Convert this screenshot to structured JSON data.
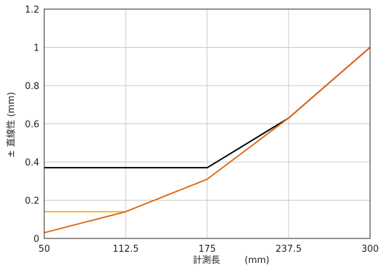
{
  "chart_data": {
    "type": "line",
    "xlabel_main": "計測長",
    "xlabel_unit": "(mm)",
    "ylabel": "± 直線性 (mm)",
    "xlim": [
      50,
      300
    ],
    "ylim": [
      0,
      1.2
    ],
    "x_ticks": [
      "50",
      "112.5",
      "175",
      "237.5",
      "300"
    ],
    "y_ticks": [
      "0",
      "0.2",
      "0.4",
      "0.6",
      "0.8",
      "1",
      "1.2"
    ],
    "grid": true,
    "series": [
      {
        "color": "#000000",
        "x": [
          50,
          175,
          237.5,
          300
        ],
        "y": [
          0.37,
          0.37,
          0.63,
          1.0
        ]
      },
      {
        "color": "#f5b82e",
        "x": [
          50,
          112.5
        ],
        "y": [
          0.14,
          0.14
        ]
      },
      {
        "color": "#e06b1c",
        "x": [
          50,
          112.5,
          175,
          237.5,
          300
        ],
        "y": [
          0.03,
          0.14,
          0.31,
          0.63,
          1.0
        ]
      }
    ]
  }
}
